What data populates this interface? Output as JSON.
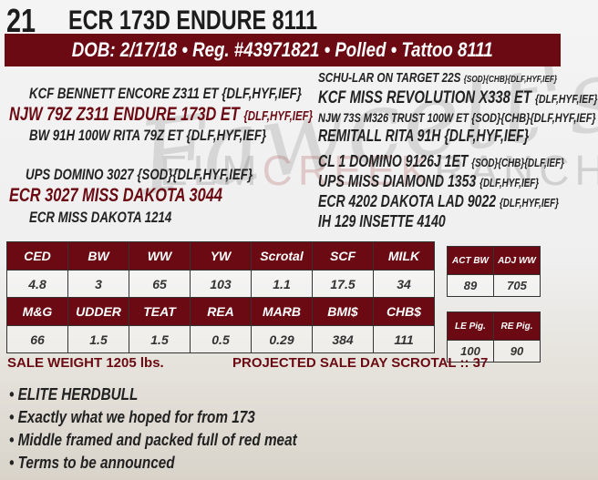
{
  "lot": "21",
  "name": "ECR 173D ENDURE 8111",
  "info": "DOB: 2/17/18 • Reg. #43971821 • Polled • Tattoo 8111",
  "watermark": {
    "script": "Fawcett's",
    "brand": "ELM CREEK RANCH"
  },
  "pedigree": {
    "sire_sire": {
      "name": "KCF BENNETT ENCORE Z311 ET",
      "tags": "{DLF,HYF,IEF}"
    },
    "sire": {
      "name": "NJW 79Z Z311 ENDURE 173D ET",
      "tags": "{DLF,HYF,IEF}"
    },
    "sire_dam": {
      "name": "BW 91H 100W RITA 79Z ET",
      "tags": "{DLF,HYF,IEF}"
    },
    "dam_sire": {
      "name": "UPS DOMINO 3027",
      "tags": "{SOD}{DLF,HYF,IEF}"
    },
    "dam": {
      "name": "ECR 3027 MISS DAKOTA 3044",
      "tags": ""
    },
    "dam_dam": {
      "name": "ECR MISS DAKOTA 1214",
      "tags": ""
    },
    "right": [
      {
        "name": "SCHU-LAR ON TARGET 22S",
        "tags": "{SOD}{CHB}{DLF,HYF,IEF}"
      },
      {
        "name": "KCF MISS REVOLUTION X338 ET",
        "tags": "{DLF,HYF,IEF}"
      },
      {
        "name": "NJW 73S M326 TRUST 100W ET",
        "tags": "{SOD}{CHB}{DLF,HYF,IEF}"
      },
      {
        "name": "REMITALL RITA 91H",
        "tags": "{DLF,HYF,IEF}"
      },
      {
        "name": "CL 1 DOMINO 9126J 1ET",
        "tags": "{SOD}{CHB}{DLF,IEF}"
      },
      {
        "name": "UPS MISS DIAMOND 1353",
        "tags": "{DLF,HYF,IEF}"
      },
      {
        "name": "ECR 4202 DAKOTA LAD 9022",
        "tags": "{DLF,HYF,IEF}"
      },
      {
        "name": "IH 129 INSETTE 4140",
        "tags": ""
      }
    ]
  },
  "epds": {
    "row1_headers": [
      "CED",
      "BW",
      "WW",
      "YW",
      "Scrotal",
      "SCF",
      "MILK"
    ],
    "row1_values": [
      "4.8",
      "3",
      "65",
      "103",
      "1.1",
      "17.5",
      "34"
    ],
    "row2_headers": [
      "M&G",
      "UDDER",
      "TEAT",
      "REA",
      "MARB",
      "BMI$",
      "CHB$"
    ],
    "row2_values": [
      "66",
      "1.5",
      "1.5",
      "0.5",
      "0.29",
      "384",
      "111"
    ]
  },
  "weights": {
    "headers": [
      "ACT BW",
      "ADJ WW"
    ],
    "values": [
      "89",
      "705"
    ]
  },
  "pigment": {
    "headers": [
      "LE Pig.",
      "RE Pig."
    ],
    "values": [
      "100",
      "90"
    ]
  },
  "sale_weight": "SALE WEIGHT 1205 lbs.",
  "scrotal": "PROJECTED SALE DAY SCROTAL :: 37",
  "bullets": [
    "• ELITE HERDBULL",
    "• Exactly what we hoped for from 173",
    "• Middle framed and packed full of red meat",
    "• Terms to be announced"
  ],
  "colors": {
    "accent": "#6b0a12"
  }
}
